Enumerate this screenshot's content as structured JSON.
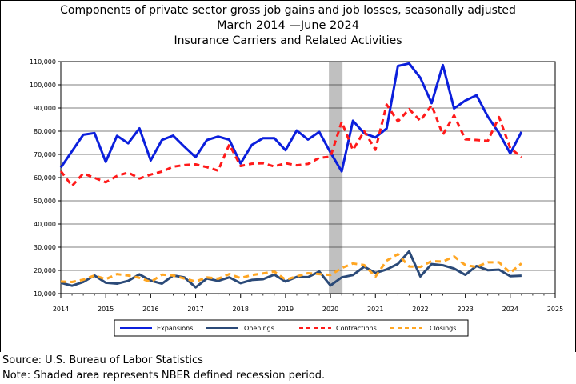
{
  "title": {
    "line1": "Components of private sector gross job gains and job losses, seasonally adjusted",
    "line2": "March 2014 —June 2024",
    "line3": "Insurance Carriers and Related Activities"
  },
  "footer": {
    "source": "Source: U.S. Bureau of Labor Statistics",
    "note": "Note: Shaded area represents NBER defined recession period."
  },
  "chart_data": {
    "type": "line",
    "x_ticks": [
      "2014",
      "2015",
      "2016",
      "2017",
      "2018",
      "2019",
      "2020",
      "2021",
      "2022",
      "2023",
      "2024",
      "2025"
    ],
    "y_ticks": [
      "10,000",
      "20,000",
      "30,000",
      "40,000",
      "50,000",
      "60,000",
      "70,000",
      "80,000",
      "90,000",
      "100,000",
      "110,000"
    ],
    "xlim": [
      2014.0,
      2025.0
    ],
    "ylim": [
      10000,
      110000
    ],
    "grid": "horizontal",
    "legend_position": "bottom",
    "recession_band": [
      2020.0,
      2020.25
    ],
    "colors": {
      "expansions": "#0b1fdc",
      "openings": "#2b4a78",
      "contractions": "#ff1a1a",
      "closings": "#ffa623",
      "recession": "#c0c0c0"
    },
    "x": [
      2014.0,
      2014.25,
      2014.5,
      2014.75,
      2015.0,
      2015.25,
      2015.5,
      2015.75,
      2016.0,
      2016.25,
      2016.5,
      2016.75,
      2017.0,
      2017.25,
      2017.5,
      2017.75,
      2018.0,
      2018.25,
      2018.5,
      2018.75,
      2019.0,
      2019.25,
      2019.5,
      2019.75,
      2020.0,
      2020.25,
      2020.5,
      2020.75,
      2021.0,
      2021.25,
      2021.5,
      2021.75,
      2022.0,
      2022.25,
      2022.5,
      2022.75,
      2023.0,
      2023.25,
      2023.5,
      2023.75,
      2024.0,
      2024.25
    ],
    "series": [
      {
        "name": "Expansions",
        "key": "expansions",
        "style": "solid",
        "values": [
          64300,
          71400,
          78500,
          79200,
          66800,
          78000,
          74800,
          81200,
          67400,
          76200,
          78100,
          73300,
          68800,
          76200,
          77700,
          76300,
          66100,
          74100,
          77000,
          77000,
          71800,
          80300,
          76400,
          79700,
          70800,
          62700,
          84500,
          79100,
          77300,
          81200,
          108100,
          109200,
          103000,
          92100,
          108500,
          89800,
          93200,
          95500,
          86300,
          79200,
          70400,
          79700
        ]
      },
      {
        "name": "Openings",
        "key": "openings",
        "style": "solid",
        "values": [
          14700,
          13400,
          15000,
          17800,
          14700,
          14300,
          15500,
          18300,
          15600,
          14300,
          17800,
          17000,
          12700,
          16500,
          15500,
          17000,
          14500,
          15900,
          16200,
          18200,
          15200,
          17200,
          17100,
          19500,
          13500,
          17000,
          18000,
          21600,
          18900,
          20400,
          22800,
          28200,
          17400,
          22700,
          22200,
          20800,
          18100,
          21900,
          20100,
          20300,
          17500,
          17700
        ]
      },
      {
        "name": "Contractions",
        "key": "contractions",
        "style": "dashed",
        "values": [
          62800,
          56400,
          61800,
          59900,
          58000,
          60700,
          62200,
          59600,
          61300,
          62600,
          64700,
          65400,
          65700,
          64500,
          63000,
          74300,
          65000,
          66000,
          66200,
          64800,
          66200,
          65300,
          65900,
          68500,
          69000,
          84000,
          71900,
          80000,
          72000,
          91500,
          84200,
          89500,
          84500,
          91200,
          78500,
          86800,
          76500,
          76200,
          75800,
          86100,
          72700,
          68800
        ]
      },
      {
        "name": "Closings",
        "key": "closings",
        "style": "dashed",
        "values": [
          15200,
          15000,
          16000,
          17800,
          16200,
          18400,
          17800,
          16800,
          15000,
          18200,
          17800,
          16500,
          15200,
          17000,
          16400,
          18400,
          16700,
          18000,
          18700,
          19500,
          16000,
          17400,
          18800,
          18400,
          18000,
          21000,
          23000,
          22300,
          17300,
          24200,
          27000,
          21700,
          21500,
          24000,
          23800,
          26000,
          22300,
          21500,
          23500,
          23500,
          19000,
          23000
        ]
      }
    ]
  }
}
